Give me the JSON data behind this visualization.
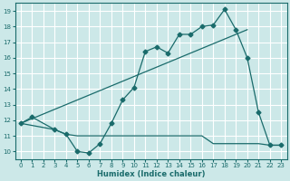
{
  "xlabel": "Humidex (Indice chaleur)",
  "bg_color": "#cce8e8",
  "grid_color": "#ffffff",
  "line_color": "#1a6b6b",
  "xlim": [
    -0.5,
    23.5
  ],
  "ylim": [
    9.5,
    19.5
  ],
  "xticks": [
    0,
    1,
    2,
    3,
    4,
    5,
    6,
    7,
    8,
    9,
    10,
    11,
    12,
    13,
    14,
    15,
    16,
    17,
    18,
    19,
    20,
    21,
    22,
    23
  ],
  "yticks": [
    10,
    11,
    12,
    13,
    14,
    15,
    16,
    17,
    18,
    19
  ],
  "curve1_x": [
    0,
    1,
    3,
    4,
    5,
    6,
    7,
    8,
    9,
    10,
    11,
    12,
    13,
    14,
    15,
    16,
    17,
    18,
    19,
    20,
    21,
    22,
    23
  ],
  "curve1_y": [
    11.8,
    12.2,
    11.4,
    11.1,
    10.0,
    9.9,
    10.5,
    11.8,
    13.3,
    14.1,
    16.4,
    16.7,
    16.3,
    17.5,
    17.5,
    18.0,
    18.1,
    19.1,
    17.8,
    16.0,
    12.5,
    10.4,
    10.4
  ],
  "flat_x": [
    0,
    3,
    4,
    5,
    6,
    7,
    8,
    9,
    10,
    11,
    12,
    13,
    14,
    15,
    16,
    17,
    18,
    19,
    20,
    21,
    22,
    23
  ],
  "flat_y": [
    11.8,
    11.4,
    11.1,
    11.0,
    11.0,
    11.0,
    11.0,
    11.0,
    11.0,
    11.0,
    11.0,
    11.0,
    11.0,
    11.0,
    11.0,
    10.5,
    10.5,
    10.5,
    10.5,
    10.5,
    10.4,
    10.4
  ],
  "trend_x": [
    0,
    20
  ],
  "trend_y": [
    11.8,
    17.8
  ]
}
